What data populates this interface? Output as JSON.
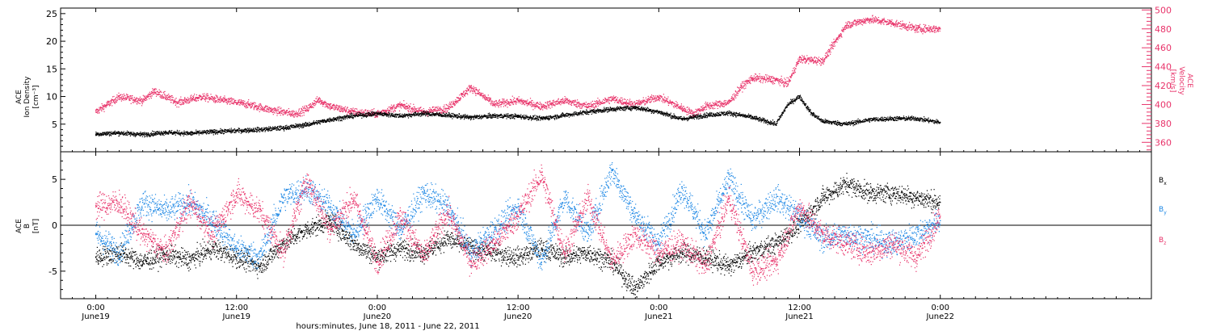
{
  "chart_data": [
    {
      "type": "scatter",
      "panel": "top",
      "x_time_axis": true,
      "ylabel_left": [
        "ACE",
        "Ion Density",
        "[cm⁻³]"
      ],
      "ylabel_right": [
        "ACE",
        "Velocity",
        "[km/s]"
      ],
      "ylim_left": [
        0,
        26
      ],
      "ylim_right": [
        350,
        502
      ],
      "yticks_left": [
        "5",
        "10",
        "15",
        "20",
        "25"
      ],
      "yticks_right": [
        "360",
        "380",
        "400",
        "420",
        "440",
        "460",
        "480",
        "500"
      ],
      "series": [
        {
          "axis": "left",
          "color": "#000000",
          "points": [
            [
              0,
              3.2
            ],
            [
              2,
              3.4
            ],
            [
              4,
              3.1
            ],
            [
              6,
              3.5
            ],
            [
              8,
              3.3
            ],
            [
              10,
              3.6
            ],
            [
              12,
              3.8
            ],
            [
              14,
              4.0
            ],
            [
              16,
              4.3
            ],
            [
              18,
              4.9
            ],
            [
              20,
              5.8
            ],
            [
              22,
              6.5
            ],
            [
              24,
              6.9
            ],
            [
              26,
              6.5
            ],
            [
              28,
              6.9
            ],
            [
              30,
              6.6
            ],
            [
              32,
              6.2
            ],
            [
              34,
              6.5
            ],
            [
              36,
              6.4
            ],
            [
              38,
              6.0
            ],
            [
              40,
              6.6
            ],
            [
              42,
              7.2
            ],
            [
              44,
              7.7
            ],
            [
              46,
              8.0
            ],
            [
              48,
              7.2
            ],
            [
              50,
              5.9
            ],
            [
              52,
              6.6
            ],
            [
              54,
              7.0
            ],
            [
              56,
              6.2
            ],
            [
              58,
              5.0
            ],
            [
              59,
              8.5
            ],
            [
              60,
              10.0
            ],
            [
              61,
              7.0
            ],
            [
              62,
              5.5
            ],
            [
              64,
              5.0
            ],
            [
              66,
              5.8
            ],
            [
              68,
              6.0
            ],
            [
              70,
              6.0
            ],
            [
              72,
              5.3
            ]
          ]
        },
        {
          "axis": "right",
          "color": "#e8336a",
          "points": [
            [
              0,
              392
            ],
            [
              2,
              408
            ],
            [
              4,
              404
            ],
            [
              5,
              414
            ],
            [
              7,
              402
            ],
            [
              9,
              408
            ],
            [
              11,
              404
            ],
            [
              13,
              400
            ],
            [
              15,
              394
            ],
            [
              17,
              390
            ],
            [
              18,
              395
            ],
            [
              19,
              405
            ],
            [
              20,
              398
            ],
            [
              22,
              392
            ],
            [
              24,
              390
            ],
            [
              26,
              399
            ],
            [
              28,
              392
            ],
            [
              30,
              396
            ],
            [
              32,
              418
            ],
            [
              34,
              400
            ],
            [
              36,
              404
            ],
            [
              38,
              398
            ],
            [
              40,
              404
            ],
            [
              42,
              398
            ],
            [
              44,
              406
            ],
            [
              46,
              400
            ],
            [
              48,
              408
            ],
            [
              50,
              396
            ],
            [
              51,
              390
            ],
            [
              52,
              398
            ],
            [
              54,
              402
            ],
            [
              55,
              418
            ],
            [
              56,
              428
            ],
            [
              58,
              426
            ],
            [
              59,
              422
            ],
            [
              60,
              448
            ],
            [
              62,
              446
            ],
            [
              64,
              484
            ],
            [
              66,
              490
            ],
            [
              68,
              486
            ],
            [
              70,
              480
            ],
            [
              72,
              480
            ]
          ]
        }
      ]
    },
    {
      "type": "scatter",
      "panel": "bottom",
      "x_time_axis": true,
      "ylabel": [
        "ACE",
        "B",
        "[nT]"
      ],
      "ylim": [
        -8,
        8
      ],
      "yticks": [
        "-5",
        "0",
        "5"
      ],
      "zero_line": true,
      "series": [
        {
          "name": "Bx",
          "label_main": "B",
          "label_sub": "x",
          "color": "#000000",
          "points": [
            [
              0,
              -3.5
            ],
            [
              2,
              -3
            ],
            [
              4,
              -4
            ],
            [
              6,
              -3.2
            ],
            [
              8,
              -3.8
            ],
            [
              10,
              -2.5
            ],
            [
              12,
              -3.5
            ],
            [
              14,
              -4.5
            ],
            [
              16,
              -2
            ],
            [
              18,
              -0.5
            ],
            [
              20,
              0.5
            ],
            [
              22,
              -2
            ],
            [
              24,
              -3.5
            ],
            [
              26,
              -2.5
            ],
            [
              28,
              -3
            ],
            [
              30,
              -1.5
            ],
            [
              32,
              -2.5
            ],
            [
              34,
              -3
            ],
            [
              36,
              -3.5
            ],
            [
              38,
              -2.5
            ],
            [
              40,
              -3.5
            ],
            [
              42,
              -3
            ],
            [
              44,
              -4
            ],
            [
              46,
              -7
            ],
            [
              48,
              -4
            ],
            [
              50,
              -3
            ],
            [
              52,
              -3.5
            ],
            [
              54,
              -4.5
            ],
            [
              56,
              -3
            ],
            [
              58,
              -2
            ],
            [
              60,
              0
            ],
            [
              62,
              3
            ],
            [
              64,
              4.5
            ],
            [
              66,
              3.5
            ],
            [
              68,
              3.5
            ],
            [
              70,
              3
            ],
            [
              72,
              2.5
            ]
          ]
        },
        {
          "name": "By",
          "label_main": "B",
          "label_sub": "y",
          "color": "#1e88e5",
          "points": [
            [
              0,
              -1
            ],
            [
              2,
              -3
            ],
            [
              4,
              2.5
            ],
            [
              6,
              1.5
            ],
            [
              8,
              2.5
            ],
            [
              10,
              0.5
            ],
            [
              12,
              -2.5
            ],
            [
              14,
              -3.5
            ],
            [
              16,
              3
            ],
            [
              18,
              4
            ],
            [
              20,
              2
            ],
            [
              22,
              -1
            ],
            [
              24,
              3
            ],
            [
              26,
              -0.5
            ],
            [
              28,
              3.5
            ],
            [
              30,
              2
            ],
            [
              32,
              -3
            ],
            [
              34,
              -0.5
            ],
            [
              36,
              2
            ],
            [
              38,
              -4
            ],
            [
              40,
              3
            ],
            [
              42,
              -1
            ],
            [
              44,
              6
            ],
            [
              46,
              1
            ],
            [
              48,
              -2
            ],
            [
              50,
              4
            ],
            [
              52,
              -1
            ],
            [
              54,
              5
            ],
            [
              56,
              0.5
            ],
            [
              58,
              3
            ],
            [
              60,
              1
            ],
            [
              62,
              -1.5
            ],
            [
              64,
              -1
            ],
            [
              66,
              -1.5
            ],
            [
              68,
              -2
            ],
            [
              70,
              -1
            ],
            [
              72,
              0.5
            ]
          ]
        },
        {
          "name": "Bz",
          "label_main": "B",
          "label_sub": "z",
          "color": "#e8336a",
          "points": [
            [
              0,
              2
            ],
            [
              2,
              2.5
            ],
            [
              4,
              -1
            ],
            [
              6,
              -3
            ],
            [
              8,
              2.5
            ],
            [
              10,
              -1
            ],
            [
              12,
              3.5
            ],
            [
              14,
              1.5
            ],
            [
              16,
              -3
            ],
            [
              18,
              5
            ],
            [
              20,
              -0.5
            ],
            [
              22,
              3
            ],
            [
              24,
              -4
            ],
            [
              26,
              1
            ],
            [
              28,
              -3.5
            ],
            [
              30,
              1.5
            ],
            [
              32,
              -4
            ],
            [
              34,
              -2
            ],
            [
              36,
              1
            ],
            [
              38,
              5.5
            ],
            [
              40,
              -3
            ],
            [
              42,
              3
            ],
            [
              44,
              -4
            ],
            [
              46,
              -1
            ],
            [
              48,
              -3
            ],
            [
              50,
              -2
            ],
            [
              52,
              -4.5
            ],
            [
              54,
              3
            ],
            [
              56,
              -5
            ],
            [
              58,
              -4
            ],
            [
              60,
              2
            ],
            [
              62,
              -1
            ],
            [
              64,
              -2
            ],
            [
              66,
              -3
            ],
            [
              68,
              -2
            ],
            [
              70,
              -3.5
            ],
            [
              72,
              1
            ]
          ]
        }
      ]
    }
  ],
  "x_axis": {
    "range_hours": [
      -3,
      90
    ],
    "ticks": [
      {
        "hour": 0,
        "time": "0:00",
        "day": "June19"
      },
      {
        "hour": 12,
        "time": "12:00",
        "day": "June19"
      },
      {
        "hour": 24,
        "time": "0:00",
        "day": "June20"
      },
      {
        "hour": 36,
        "time": "12:00",
        "day": "June20"
      },
      {
        "hour": 48,
        "time": "0:00",
        "day": "June21"
      },
      {
        "hour": 60,
        "time": "12:00",
        "day": "June21"
      },
      {
        "hour": 72,
        "time": "0:00",
        "day": "June22"
      }
    ],
    "xlabel": "hours:minutes, June 18, 2011 - June 22, 2011",
    "data_end_hour": 71.5
  }
}
